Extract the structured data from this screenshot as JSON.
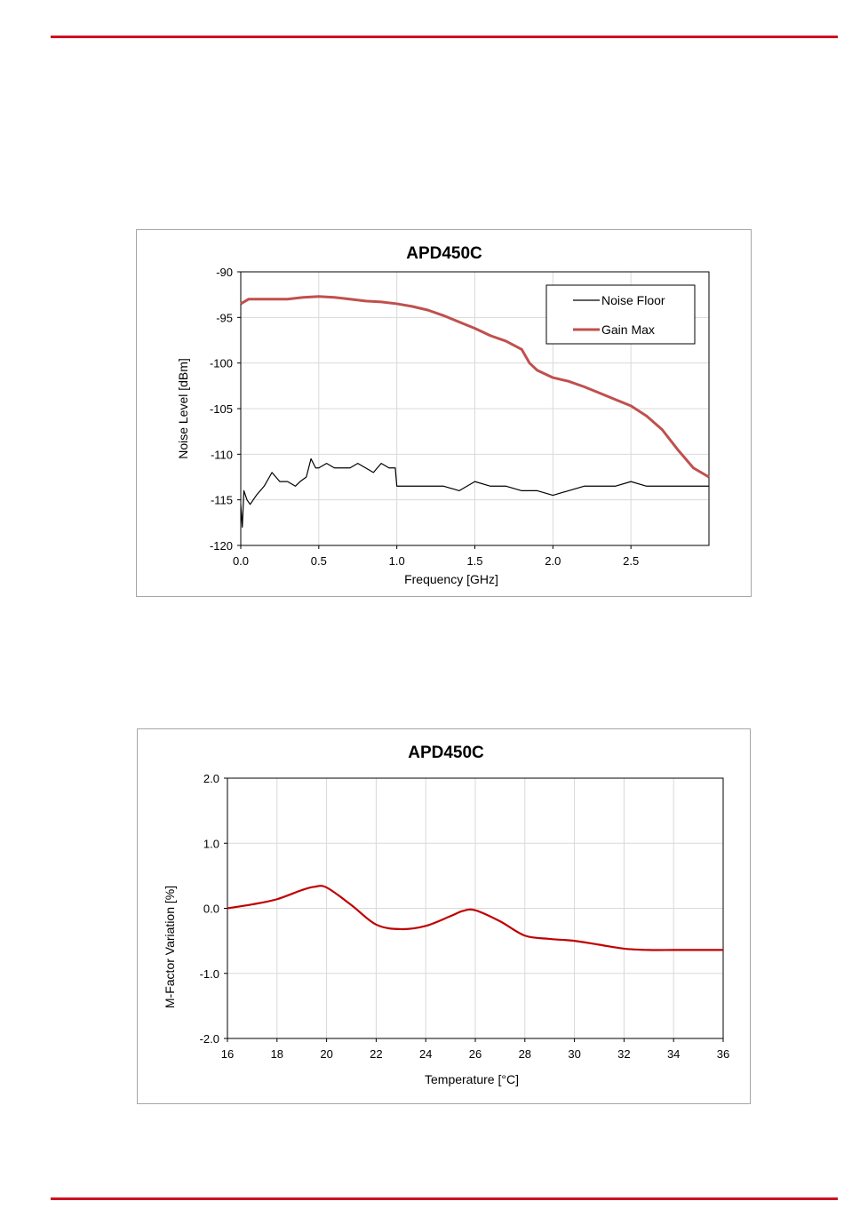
{
  "colors": {
    "rule": "#cc1122",
    "noise_floor": "#000000",
    "gain_max": "#c0504d",
    "m_factor": "#c00000",
    "grid": "#d9d9d9"
  },
  "chart_data": [
    {
      "type": "line",
      "title": "APD450C",
      "xlabel": "Frequency [GHz]",
      "ylabel": "Noise Level [dBm]",
      "xlim": [
        0,
        3.0
      ],
      "ylim": [
        -120,
        -90
      ],
      "xticks": [
        "0.0",
        "0.5",
        "1.0",
        "1.5",
        "2.0",
        "2.5"
      ],
      "yticks": [
        "-90",
        "-95",
        "-100",
        "-105",
        "-110",
        "-115",
        "-120"
      ],
      "grid": true,
      "legend": "top-right",
      "series": [
        {
          "name": "Noise Floor",
          "x": [
            0.0,
            0.01,
            0.02,
            0.04,
            0.06,
            0.08,
            0.1,
            0.15,
            0.2,
            0.25,
            0.3,
            0.35,
            0.38,
            0.42,
            0.45,
            0.48,
            0.5,
            0.55,
            0.6,
            0.65,
            0.7,
            0.75,
            0.8,
            0.85,
            0.9,
            0.95,
            0.99,
            1.0,
            1.1,
            1.2,
            1.3,
            1.4,
            1.45,
            1.5,
            1.6,
            1.7,
            1.8,
            1.9,
            2.0,
            2.1,
            2.2,
            2.3,
            2.4,
            2.5,
            2.6,
            2.7,
            2.8,
            2.9,
            3.0
          ],
          "y": [
            -115.5,
            -118.0,
            -114.0,
            -115.0,
            -115.5,
            -115.0,
            -114.5,
            -113.5,
            -112.0,
            -113.0,
            -113.0,
            -113.5,
            -113.0,
            -112.5,
            -110.5,
            -111.5,
            -111.5,
            -111.0,
            -111.5,
            -111.5,
            -111.5,
            -111.0,
            -111.5,
            -112.0,
            -111.0,
            -111.5,
            -111.5,
            -113.5,
            -113.5,
            -113.5,
            -113.5,
            -114.0,
            -113.5,
            -113.0,
            -113.5,
            -113.5,
            -114.0,
            -114.0,
            -114.5,
            -114.0,
            -113.5,
            -113.5,
            -113.5,
            -113.0,
            -113.5,
            -113.5,
            -113.5,
            -113.5,
            -113.5
          ]
        },
        {
          "name": "Gain Max",
          "x": [
            0.0,
            0.05,
            0.1,
            0.2,
            0.3,
            0.4,
            0.5,
            0.6,
            0.7,
            0.8,
            0.9,
            1.0,
            1.1,
            1.2,
            1.3,
            1.4,
            1.5,
            1.6,
            1.7,
            1.8,
            1.85,
            1.9,
            2.0,
            2.1,
            2.2,
            2.3,
            2.4,
            2.5,
            2.6,
            2.7,
            2.8,
            2.9,
            3.0
          ],
          "y": [
            -93.5,
            -93.0,
            -93.0,
            -93.0,
            -93.0,
            -92.8,
            -92.7,
            -92.8,
            -93.0,
            -93.2,
            -93.3,
            -93.5,
            -93.8,
            -94.2,
            -94.8,
            -95.5,
            -96.2,
            -97.0,
            -97.6,
            -98.5,
            -100.0,
            -100.8,
            -101.6,
            -102.0,
            -102.6,
            -103.3,
            -104.0,
            -104.7,
            -105.8,
            -107.3,
            -109.5,
            -111.5,
            -112.5
          ]
        }
      ]
    },
    {
      "type": "line",
      "title": "APD450C",
      "xlabel": "Temperature [°C]",
      "ylabel": "M-Factor Variation [%]",
      "xlim": [
        16,
        36
      ],
      "ylim": [
        -2.0,
        2.0
      ],
      "xticks": [
        "16",
        "18",
        "20",
        "22",
        "24",
        "26",
        "28",
        "30",
        "32",
        "34",
        "36"
      ],
      "yticks": [
        "2.0",
        "1.0",
        "0.0",
        "-1.0",
        "-2.0"
      ],
      "grid": true,
      "series": [
        {
          "x": [
            16,
            17,
            18,
            19,
            19.5,
            20,
            21,
            22,
            23,
            24,
            25,
            25.5,
            26,
            27,
            28,
            29,
            30,
            31,
            32,
            33,
            34,
            35,
            36
          ],
          "y": [
            0.0,
            0.06,
            0.14,
            0.28,
            0.33,
            0.32,
            0.05,
            -0.25,
            -0.32,
            -0.27,
            -0.12,
            -0.04,
            -0.03,
            -0.2,
            -0.42,
            -0.47,
            -0.5,
            -0.56,
            -0.62,
            -0.64,
            -0.64,
            -0.64,
            -0.64
          ]
        }
      ]
    }
  ]
}
